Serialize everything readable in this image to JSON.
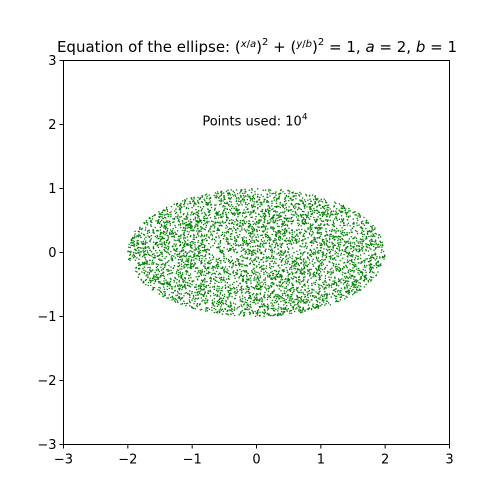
{
  "chart_data": {
    "type": "scatter",
    "title": {
      "prefix": "Equation of the ellipse: (",
      "x_over_a_num": "x",
      "x_over_a_den": "a",
      "mid1": ")",
      "exp1": "2",
      "plus": " + (",
      "y_over_b_num": "y",
      "y_over_b_den": "b",
      "mid2": ")",
      "exp2": "2",
      "equals": " = 1, ",
      "a_name": "a",
      "a_eq": " = 2, ",
      "b_name": "b",
      "b_eq": " = 1"
    },
    "annotation": {
      "text": "Points used: 10",
      "exponent": "4",
      "x": 0.1,
      "y": 2.05
    },
    "xlim": [
      -3,
      3
    ],
    "ylim": [
      -3,
      3
    ],
    "xticks": [
      -3,
      -2,
      -1,
      0,
      1,
      2,
      3
    ],
    "yticks": [
      -3,
      -2,
      -1,
      0,
      1,
      2,
      3
    ],
    "xtick_labels": [
      "−3",
      "−2",
      "−1",
      "0",
      "1",
      "2",
      "3"
    ],
    "ytick_labels": [
      "−3",
      "−2",
      "−1",
      "0",
      "1",
      "2",
      "3"
    ],
    "grid": false,
    "series": [
      {
        "region": "ellipse (x/2)^2 + y^2 <= 1",
        "color": "#008000",
        "semi_axis_a": 2,
        "semi_axis_b": 1,
        "center": [
          0,
          0
        ],
        "point_count_rendered": 5000
      }
    ]
  }
}
